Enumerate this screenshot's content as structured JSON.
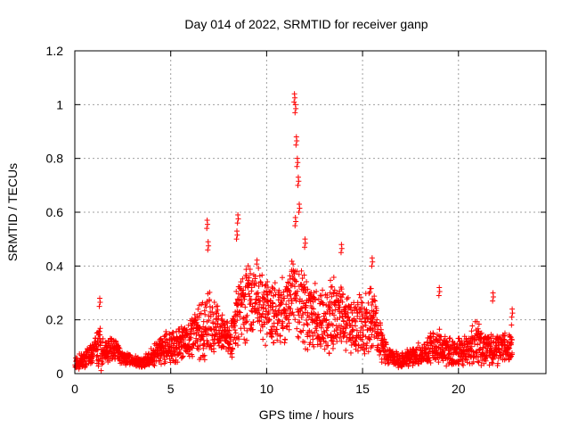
{
  "chart_data": {
    "type": "scatter",
    "title": "Day 014 of 2022, SRMTID for receiver ganp",
    "xlabel": "GPS time / hours",
    "ylabel": "SRMTID / TECUs",
    "xlim": [
      0,
      24.56
    ],
    "ylim": [
      0,
      1.2
    ],
    "xticks": [
      0,
      5,
      10,
      15,
      20
    ],
    "xtick_labels": [
      "0",
      "5",
      "10",
      "15",
      "20"
    ],
    "yticks": [
      0,
      0.2,
      0.4,
      0.6,
      0.8,
      1,
      1.2
    ],
    "ytick_labels": [
      "0",
      "0.2",
      "0.4",
      "0.6",
      "0.8",
      "1",
      "1.2"
    ],
    "grid": true,
    "marker": "+",
    "color": "#ff0000",
    "series": [
      {
        "name": "SRMTID",
        "envelope": {
          "x": [
            0,
            0.5,
            1.0,
            1.3,
            1.5,
            2.0,
            2.5,
            3.0,
            3.5,
            4.0,
            4.5,
            5.0,
            5.5,
            6.0,
            6.5,
            6.9,
            7.3,
            7.8,
            8.2,
            8.6,
            9.0,
            9.5,
            10.0,
            10.5,
            11.0,
            11.4,
            11.8,
            12.2,
            12.8,
            13.4,
            14.0,
            14.5,
            15.0,
            15.5,
            16.0,
            16.5,
            17.0,
            17.5,
            18.0,
            18.5,
            19.0,
            19.5,
            20.0,
            20.5,
            21.0,
            21.5,
            22.0,
            22.5,
            22.8
          ],
          "base": [
            0.04,
            0.05,
            0.09,
            0.1,
            0.08,
            0.09,
            0.06,
            0.05,
            0.04,
            0.06,
            0.09,
            0.1,
            0.11,
            0.13,
            0.16,
            0.2,
            0.17,
            0.14,
            0.13,
            0.25,
            0.26,
            0.28,
            0.24,
            0.22,
            0.23,
            0.3,
            0.25,
            0.22,
            0.2,
            0.22,
            0.21,
            0.17,
            0.18,
            0.22,
            0.1,
            0.06,
            0.05,
            0.06,
            0.07,
            0.09,
            0.1,
            0.08,
            0.08,
            0.09,
            0.12,
            0.09,
            0.09,
            0.1,
            0.12
          ],
          "spread": [
            0.03,
            0.03,
            0.04,
            0.1,
            0.04,
            0.04,
            0.03,
            0.02,
            0.02,
            0.03,
            0.05,
            0.06,
            0.06,
            0.07,
            0.1,
            0.15,
            0.1,
            0.06,
            0.07,
            0.14,
            0.14,
            0.13,
            0.13,
            0.11,
            0.12,
            0.13,
            0.14,
            0.12,
            0.11,
            0.14,
            0.1,
            0.1,
            0.11,
            0.12,
            0.06,
            0.03,
            0.03,
            0.03,
            0.04,
            0.05,
            0.07,
            0.05,
            0.05,
            0.06,
            0.08,
            0.05,
            0.06,
            0.06,
            0.07
          ]
        },
        "peaks": [
          {
            "x": 1.3,
            "y": 0.28
          },
          {
            "x": 6.9,
            "y": 0.57
          },
          {
            "x": 6.95,
            "y": 0.49
          },
          {
            "x": 8.5,
            "y": 0.59
          },
          {
            "x": 8.45,
            "y": 0.53
          },
          {
            "x": 11.45,
            "y": 1.04
          },
          {
            "x": 11.5,
            "y": 1.0
          },
          {
            "x": 11.55,
            "y": 0.88
          },
          {
            "x": 11.6,
            "y": 0.8
          },
          {
            "x": 11.65,
            "y": 0.73
          },
          {
            "x": 11.7,
            "y": 0.63
          },
          {
            "x": 11.5,
            "y": 0.58
          },
          {
            "x": 12.0,
            "y": 0.5
          },
          {
            "x": 13.9,
            "y": 0.48
          },
          {
            "x": 15.5,
            "y": 0.43
          },
          {
            "x": 19.0,
            "y": 0.32
          },
          {
            "x": 21.8,
            "y": 0.3
          },
          {
            "x": 22.8,
            "y": 0.24
          }
        ]
      }
    ]
  }
}
